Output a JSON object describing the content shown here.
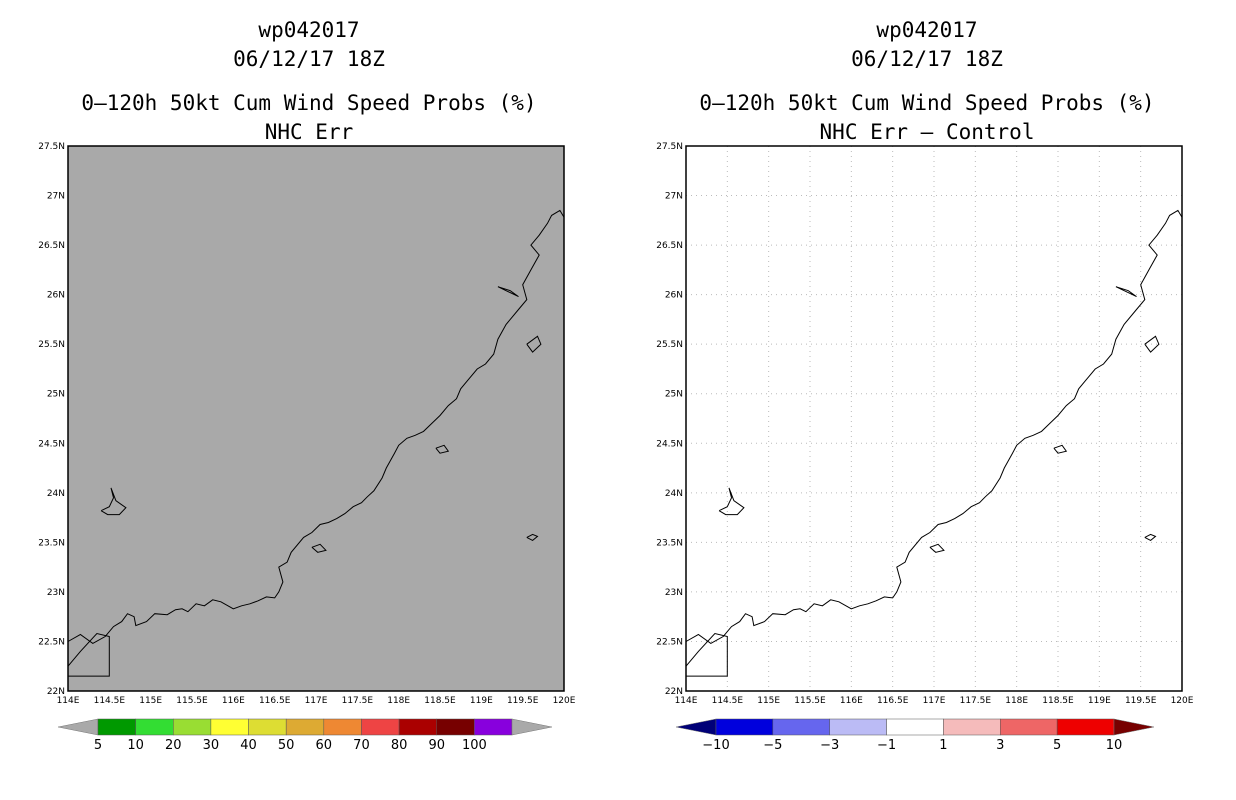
{
  "panels": [
    {
      "id": "left",
      "title_line1": "wp042017",
      "title_line2": "06/12/17 18Z",
      "title_line3": "0–120h 50kt Cum Wind Speed Probs (%)",
      "title_line4": "NHC Err",
      "background": "#a9a9a9",
      "grid": false,
      "colorbar": {
        "labels": [
          "5",
          "10",
          "20",
          "30",
          "40",
          "50",
          "60",
          "70",
          "80",
          "90",
          "100"
        ],
        "colors": [
          "#009900",
          "#33dd33",
          "#99dd33",
          "#ffff33",
          "#dddd33",
          "#ddaa33",
          "#ee8833",
          "#ee4444",
          "#aa0000",
          "#770000",
          "#8800dd"
        ],
        "end_colors": [
          "#a9a9a9",
          "#a9a9a9"
        ]
      }
    },
    {
      "id": "right",
      "title_line1": "wp042017",
      "title_line2": "06/12/17 18Z",
      "title_line3": "0–120h 50kt Cum Wind Speed Probs (%)",
      "title_line4": "NHC Err – Control",
      "background": "#ffffff",
      "grid": true,
      "colorbar": {
        "labels": [
          "−10",
          "−5",
          "−3",
          "−1",
          "1",
          "3",
          "5",
          "10"
        ],
        "colors": [
          "#0000dd",
          "#6666ee",
          "#bbbbf5",
          "#ffffff",
          "#f5bbbb",
          "#ee6666",
          "#ee0000"
        ],
        "end_colors": [
          "#000077",
          "#770000"
        ]
      }
    }
  ],
  "axes": {
    "lat_labels": [
      "27.5N",
      "27N",
      "26.5N",
      "26N",
      "25.5N",
      "25N",
      "24.5N",
      "24N",
      "23.5N",
      "23N",
      "22.5N",
      "22N"
    ],
    "lon_labels": [
      "114E",
      "114.5E",
      "115E",
      "115.5E",
      "116E",
      "116.5E",
      "117E",
      "117.5E",
      "118E",
      "118.5E",
      "119E",
      "119.5E",
      "120E"
    ],
    "lat_range": [
      22,
      27.5
    ],
    "lon_range": [
      114,
      120
    ]
  }
}
